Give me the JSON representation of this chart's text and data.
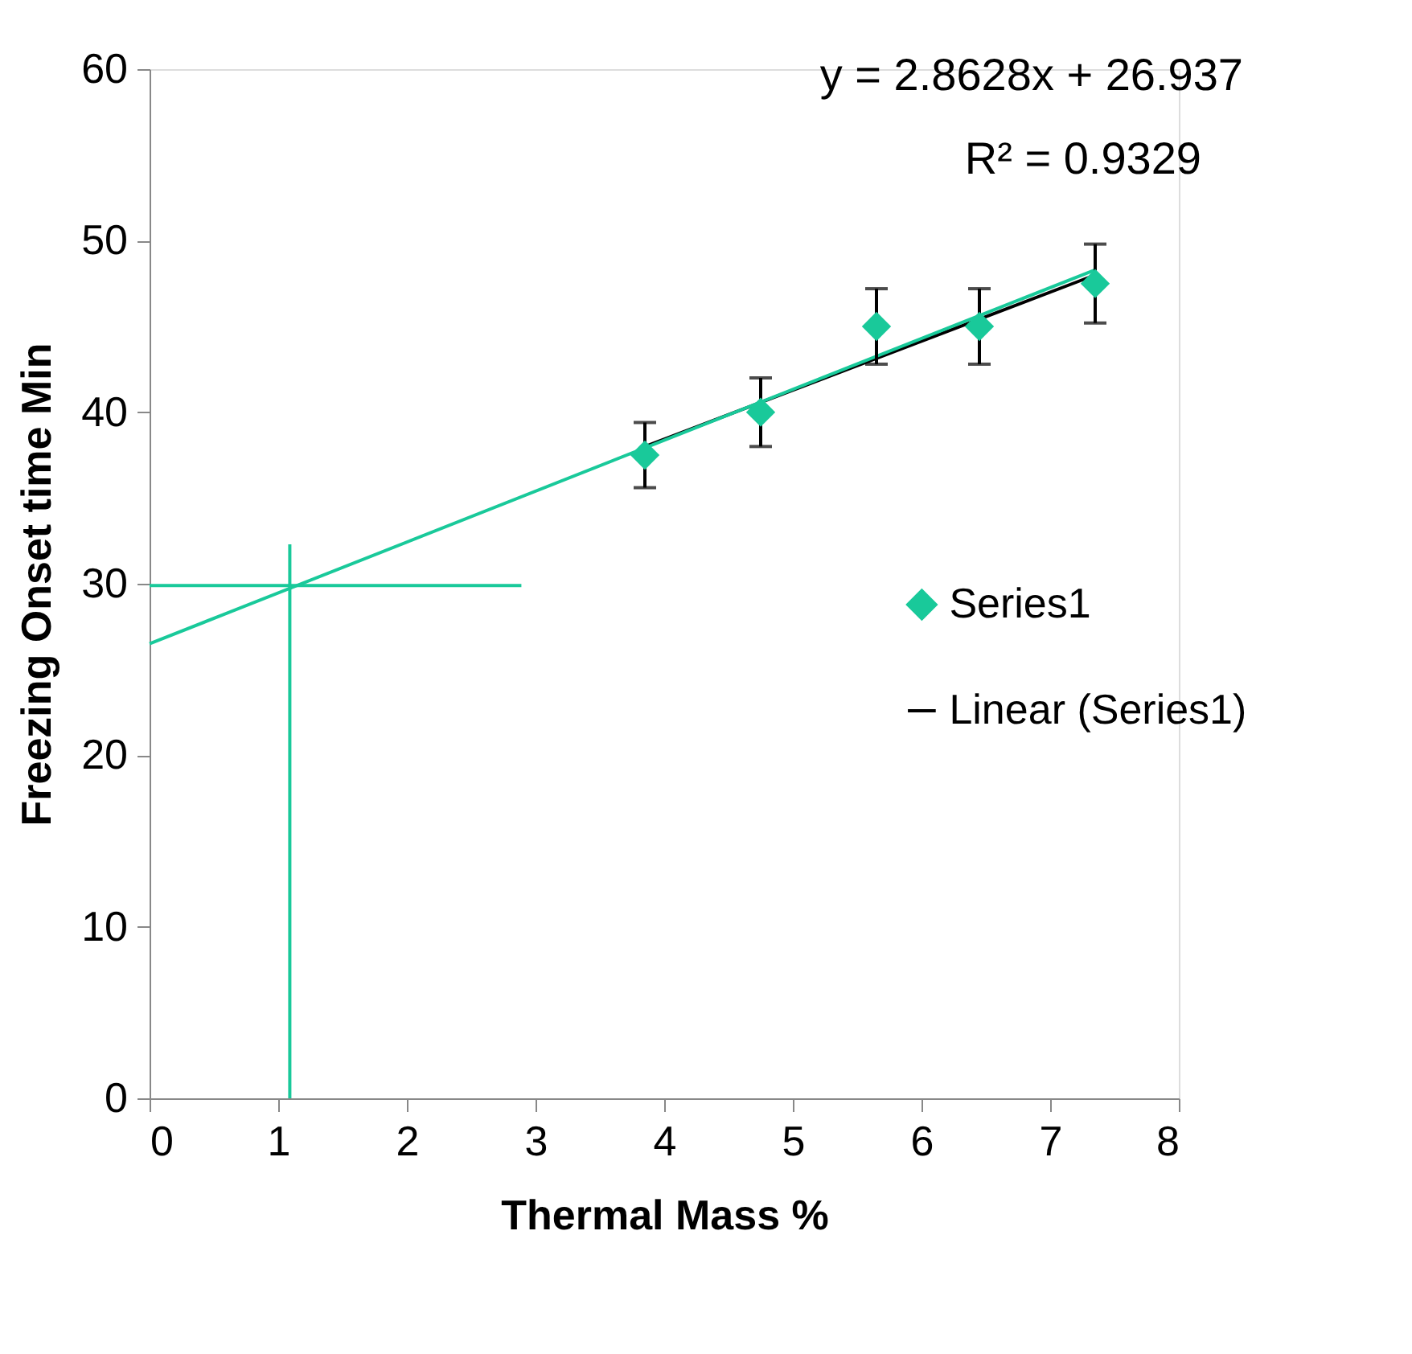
{
  "chart_data": {
    "type": "scatter",
    "xlabel": "Thermal Mass %",
    "ylabel": "Freezing Onset time Min",
    "annotations": [
      "y = 2.8628x + 26.937",
      "R² = 0.9329"
    ],
    "xlim": [
      0,
      8
    ],
    "xticks": [
      0,
      1,
      2,
      3,
      4,
      5,
      6,
      7,
      8
    ],
    "ylim": [
      0,
      60
    ],
    "yticks": [
      0,
      10,
      20,
      30,
      40,
      50,
      60
    ],
    "grid": false,
    "legend": "right",
    "series": [
      {
        "name": "Series1",
        "marker": "diamond",
        "color": "#19c99a",
        "x": [
          3.85,
          4.75,
          5.65,
          6.45,
          7.35
        ],
        "values": [
          37.5,
          40,
          45,
          45,
          47.5
        ],
        "errors": [
          1.9,
          2.0,
          2.2,
          2.2,
          2.3
        ]
      },
      {
        "type": "line",
        "name": "Linear (Series1)",
        "color": "#000000",
        "x": [
          3.85,
          7.35
        ],
        "values": [
          38.0,
          48.0
        ]
      },
      {
        "type": "line",
        "color": "#19c99a",
        "x": [
          0,
          7.35
        ],
        "values": [
          26.5,
          48.3
        ]
      },
      {
        "type": "line",
        "color": "#19c99a",
        "x": [
          0,
          2.89
        ],
        "values": [
          29.9,
          29.9
        ]
      },
      {
        "type": "line",
        "color": "#19c99a",
        "x": [
          1.09,
          1.09
        ],
        "values": [
          0,
          32.3
        ]
      }
    ]
  }
}
